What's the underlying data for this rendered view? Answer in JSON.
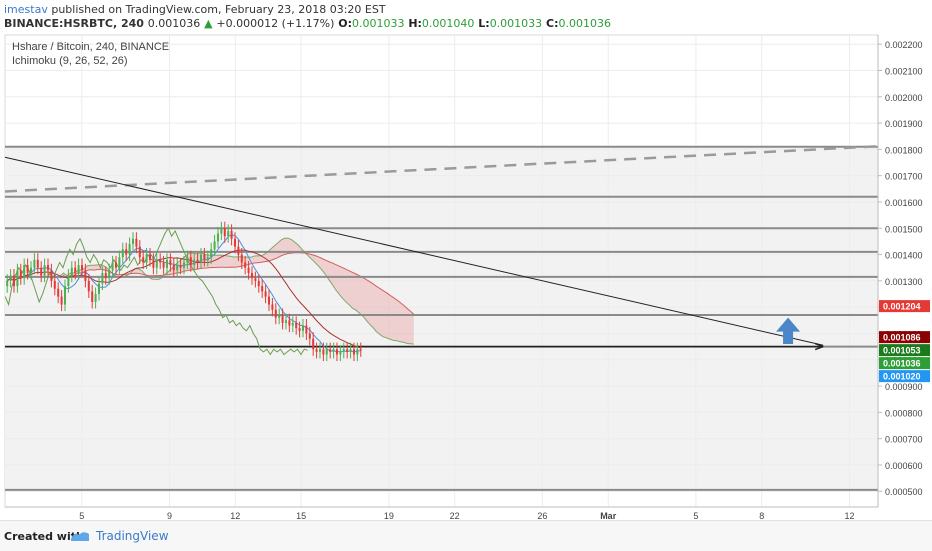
{
  "header": {
    "author": "imestav",
    "published": "published on TradingView.com, February 23, 2018 03:20 EST",
    "symbol": "BINANCE:HSRBTC, 240",
    "last": "0.001036",
    "change_arrow": "▲",
    "change": "+0.000012 (+1.17%)",
    "o_label": "O:",
    "o_value": "0.001033",
    "h_label": "H:",
    "h_value": "0.001040",
    "l_label": "L:",
    "l_value": "0.001033",
    "c_label": "C:",
    "c_value": "0.001036"
  },
  "chart_data": {
    "type": "candlestick",
    "title": "Hshare / Bitcoin, 240, BINANCE",
    "indicator": "Ichimoku (9, 26, 52, 26)",
    "x_ticks": [
      "5",
      "9",
      "12",
      "15",
      "19",
      "22",
      "26",
      "Mar",
      "5",
      "8",
      "12"
    ],
    "x_tick_days": [
      5,
      9,
      12,
      15,
      19,
      22,
      26,
      29,
      33,
      36,
      40
    ],
    "x_range_days": [
      1.5,
      41.3
    ],
    "y_ticks": [
      "0.002200",
      "0.002100",
      "0.002000",
      "0.001900",
      "0.001800",
      "0.001700",
      "0.001600",
      "0.001500",
      "0.001400",
      "0.001300",
      "0.001200",
      "0.001100",
      "0.001000",
      "0.000900",
      "0.000800",
      "0.000700",
      "0.000600",
      "0.000500"
    ],
    "ylim": [
      0.00044,
      0.002235
    ],
    "price_labels": [
      {
        "text": "0.001204",
        "value": 0.001204,
        "color": "#e53935"
      },
      {
        "text": "0.001086",
        "value": 0.001086,
        "color": "#8b0000"
      },
      {
        "text": "0.001053",
        "value": 0.001053,
        "color": "#1b7a1b"
      },
      {
        "text": "0.001036",
        "value": 0.001036,
        "color": "#2e9e36"
      },
      {
        "text": "0.001020",
        "value": 0.00102,
        "color": "#2196f3"
      }
    ],
    "horizontal_levels": [
      0.00181,
      0.00162,
      0.0015,
      0.00141,
      0.001315,
      0.00117,
      0.00105,
      0.000505
    ],
    "dashed_trendline": {
      "start": [
        1.5,
        0.00164
      ],
      "end": [
        41.3,
        0.001812
      ]
    },
    "descending_trendline": {
      "start": [
        1.5,
        0.00177
      ],
      "end": [
        38.8,
        0.001055
      ]
    },
    "arrow_line": {
      "start": [
        1.5,
        0.00105
      ],
      "end": [
        38.8,
        0.00105
      ]
    },
    "up_arrow_day": 37.2,
    "up_arrow_range": [
      0.00106,
      0.00116
    ],
    "candles": {
      "start_day": 1.6,
      "step_days": 0.155,
      "closes": [
        0.0013,
        0.00132,
        0.00128,
        0.00134,
        0.00131,
        0.00136,
        0.00133,
        0.00135,
        0.00138,
        0.00135,
        0.00132,
        0.00136,
        0.00134,
        0.0013,
        0.00127,
        0.00124,
        0.00121,
        0.00128,
        0.00132,
        0.00135,
        0.00133,
        0.00136,
        0.00134,
        0.0013,
        0.00126,
        0.00122,
        0.00125,
        0.00129,
        0.00133,
        0.00131,
        0.00134,
        0.00137,
        0.00135,
        0.00139,
        0.00142,
        0.0014,
        0.00144,
        0.00146,
        0.00143,
        0.00139,
        0.00137,
        0.0014,
        0.00138,
        0.00135,
        0.00138,
        0.00137,
        0.00135,
        0.00138,
        0.00136,
        0.00134,
        0.00136,
        0.00135,
        0.00137,
        0.00139,
        0.00136,
        0.00138,
        0.00137,
        0.0014,
        0.00138,
        0.00139,
        0.00142,
        0.00145,
        0.00148,
        0.0015,
        0.00147,
        0.00149,
        0.00146,
        0.00143,
        0.0014,
        0.00137,
        0.00135,
        0.00133,
        0.00131,
        0.0013,
        0.00128,
        0.00126,
        0.00124,
        0.00121,
        0.00119,
        0.00116,
        0.00117,
        0.00114,
        0.00115,
        0.00113,
        0.00114,
        0.00112,
        0.00111,
        0.00113,
        0.0011,
        0.00108,
        0.00104,
        0.00103,
        0.00104,
        0.00102,
        0.00104,
        0.00103,
        0.00104,
        0.00102,
        0.00103,
        0.00104,
        0.00103,
        0.00104,
        0.00102,
        0.00104,
        0.001036
      ]
    }
  },
  "footer": {
    "created_with": "Created with",
    "brand": "TradingView"
  }
}
